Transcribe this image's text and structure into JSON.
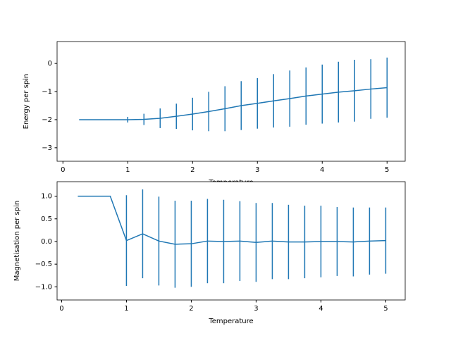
{
  "chart_data": [
    {
      "type": "line",
      "xlabel": "Temperature",
      "ylabel": "Energy per spin",
      "color": "#1f77b4",
      "x": [
        0.25,
        0.5,
        0.75,
        1.0,
        1.25,
        1.5,
        1.75,
        2.0,
        2.25,
        2.5,
        2.75,
        3.0,
        3.25,
        3.5,
        3.75,
        4.0,
        4.25,
        4.5,
        4.75,
        5.0
      ],
      "values": [
        -2.0,
        -2.0,
        -2.0,
        -2.0,
        -1.99,
        -1.95,
        -1.88,
        -1.8,
        -1.71,
        -1.61,
        -1.5,
        -1.42,
        -1.33,
        -1.25,
        -1.16,
        -1.09,
        -1.02,
        -0.97,
        -0.91,
        -0.86
      ],
      "errors": [
        0,
        0,
        0,
        0.1,
        0.2,
        0.35,
        0.45,
        0.58,
        0.7,
        0.8,
        0.87,
        0.9,
        0.95,
        1.0,
        1.02,
        1.05,
        1.08,
        1.1,
        1.06,
        1.07
      ],
      "xlim": [
        -0.09,
        5.28
      ],
      "ylim": [
        -3.48,
        0.78
      ],
      "xticks": [
        0,
        1,
        2,
        3,
        4,
        5
      ],
      "yticks": [
        0,
        {
          "value": -1,
          "label": "−1"
        },
        {
          "value": -2,
          "label": "−2"
        },
        {
          "value": -3,
          "label": "−3"
        }
      ]
    },
    {
      "type": "line",
      "xlabel": "Temperature",
      "ylabel": "Magnetisation per spin",
      "color": "#1f77b4",
      "x": [
        0.25,
        0.5,
        0.75,
        1.0,
        1.25,
        1.5,
        1.75,
        2.0,
        2.25,
        2.5,
        2.75,
        3.0,
        3.25,
        3.5,
        3.75,
        4.0,
        4.25,
        4.5,
        4.75,
        5.0
      ],
      "values": [
        1.0,
        1.0,
        1.0,
        0.02,
        0.17,
        0.01,
        -0.06,
        -0.05,
        0.01,
        0.0,
        0.01,
        -0.02,
        0.01,
        -0.01,
        -0.01,
        0.0,
        0.0,
        -0.01,
        0.01,
        0.02
      ],
      "errors": [
        0,
        0,
        0,
        1.0,
        0.98,
        0.98,
        0.96,
        0.95,
        0.93,
        0.92,
        0.88,
        0.87,
        0.84,
        0.82,
        0.8,
        0.79,
        0.76,
        0.76,
        0.74,
        0.73
      ],
      "xlim": [
        -0.07,
        5.3
      ],
      "ylim": [
        -1.29,
        1.32
      ],
      "xticks": [
        0,
        1,
        2,
        3,
        4,
        5
      ],
      "yticks": [
        {
          "value": 1,
          "label": "1.0"
        },
        {
          "value": 0.5,
          "label": "0.5"
        },
        {
          "value": 0,
          "label": "0.0"
        },
        {
          "value": -0.5,
          "label": "−0.5"
        },
        {
          "value": -1,
          "label": "−1.0"
        }
      ]
    }
  ]
}
